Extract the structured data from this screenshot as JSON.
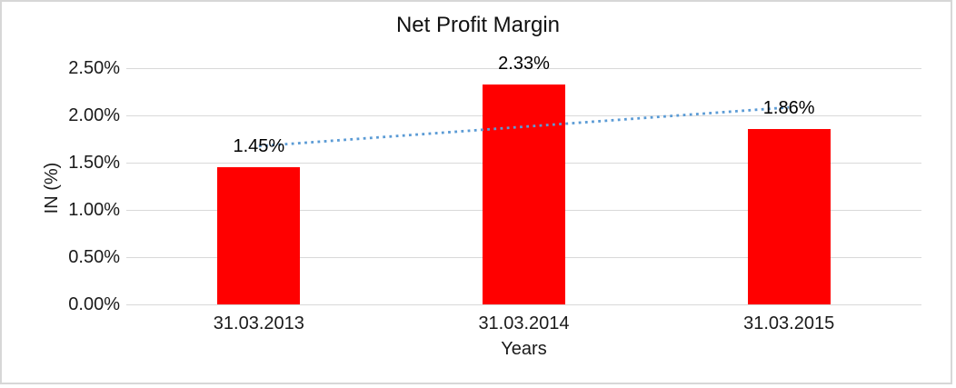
{
  "chart_data": {
    "type": "bar",
    "title": "Net Profit Margin",
    "categories": [
      "31.03.2013",
      "31.03.2014",
      "31.03.2015"
    ],
    "values": [
      1.45,
      2.33,
      1.86
    ],
    "value_labels": [
      "1.45%",
      "2.33%",
      "1.86%"
    ],
    "xlabel": "Years",
    "ylabel": "IN (%)",
    "ylim": [
      0,
      2.5
    ],
    "y_tick_values": [
      0,
      0.5,
      1.0,
      1.5,
      2.0,
      2.5
    ],
    "y_tick_labels": [
      "0.00%",
      "0.50%",
      "1.00%",
      "1.50%",
      "2.00%",
      "2.50%"
    ],
    "grid": "horizontal",
    "legend_position": "none",
    "bar_color": "#FF0000",
    "gridline_color": "#D9D9D9",
    "trendline": {
      "kind": "linear",
      "style": "dotted",
      "color": "#5B9BD5",
      "endpoints_percent": [
        1.675,
        2.085
      ]
    }
  }
}
